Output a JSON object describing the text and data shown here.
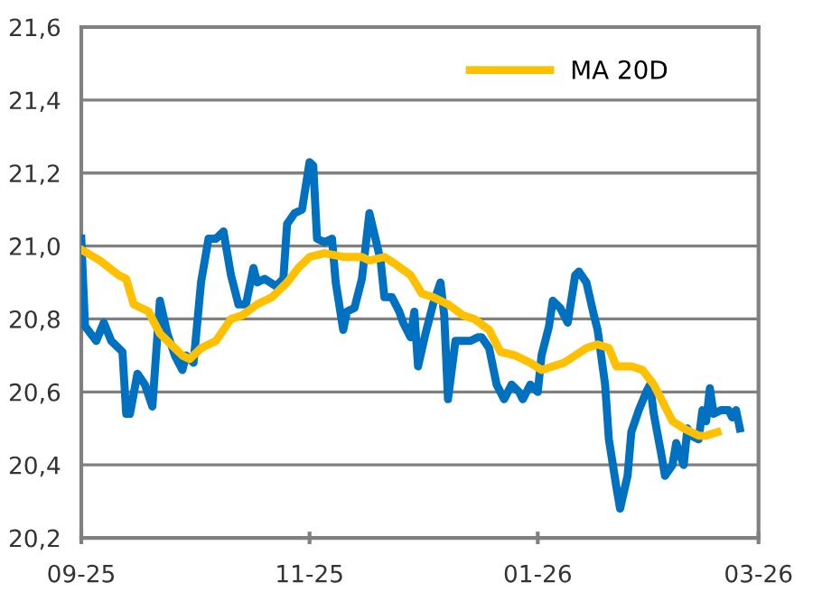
{
  "chart_data": {
    "type": "line",
    "series": [
      {
        "color": "#0070c0",
        "x": [
          "2025-09-01",
          "2025-09-02",
          "2025-09-05",
          "2025-09-07",
          "2025-09-09",
          "2025-09-12",
          "2025-09-13",
          "2025-09-14",
          "2025-09-16",
          "2025-09-18",
          "2025-09-20",
          "2025-09-22",
          "2025-09-24",
          "2025-09-26",
          "2025-09-28",
          "2025-09-29",
          "2025-10-01",
          "2025-10-03",
          "2025-10-05",
          "2025-10-07",
          "2025-10-09",
          "2025-10-11",
          "2025-10-13",
          "2025-10-15",
          "2025-10-17",
          "2025-10-18",
          "2025-10-20",
          "2025-10-23",
          "2025-10-25",
          "2025-10-26",
          "2025-10-28",
          "2025-10-30",
          "2025-11-01",
          "2025-11-02",
          "2025-11-03",
          "2025-11-05",
          "2025-11-07",
          "2025-11-08",
          "2025-11-10",
          "2025-11-11",
          "2025-11-13",
          "2025-11-15",
          "2025-11-17",
          "2025-11-20",
          "2025-11-21",
          "2025-11-23",
          "2025-11-25",
          "2025-11-26",
          "2025-11-28",
          "2025-11-29",
          "2025-11-30",
          "2025-12-02",
          "2025-12-04",
          "2025-12-06",
          "2025-12-07",
          "2025-12-08",
          "2025-12-10",
          "2025-12-12",
          "2025-12-14",
          "2025-12-16",
          "2025-12-17",
          "2025-12-19",
          "2025-12-21",
          "2025-12-22",
          "2025-12-23",
          "2025-12-25",
          "2025-12-27",
          "2025-12-28",
          "2025-12-30",
          "2026-01-01",
          "2026-01-02",
          "2026-01-04",
          "2026-01-05",
          "2026-01-07",
          "2026-01-09",
          "2026-01-11",
          "2026-01-12",
          "2026-01-14",
          "2026-01-16",
          "2026-01-17",
          "2026-01-19",
          "2026-01-20",
          "2026-01-22",
          "2026-01-23",
          "2026-01-25",
          "2026-01-26",
          "2026-01-28",
          "2026-01-30",
          "2026-01-31",
          "2026-02-01",
          "2026-02-03",
          "2026-02-04",
          "2026-02-06",
          "2026-02-07",
          "2026-02-09",
          "2026-02-10",
          "2026-02-11",
          "2026-02-13",
          "2026-02-14",
          "2026-02-15",
          "2026-02-16",
          "2026-02-17",
          "2026-02-19",
          "2026-02-21",
          "2026-02-22",
          "2026-02-23",
          "2026-02-24"
        ],
        "values": [
          21.02,
          20.78,
          20.74,
          20.79,
          20.74,
          20.71,
          20.54,
          20.54,
          20.65,
          20.62,
          20.56,
          20.85,
          20.76,
          20.7,
          20.66,
          20.7,
          20.68,
          20.9,
          21.02,
          21.02,
          21.04,
          20.92,
          20.84,
          20.84,
          20.94,
          20.9,
          20.91,
          20.89,
          20.91,
          21.06,
          21.09,
          21.1,
          21.23,
          21.22,
          21.02,
          21.01,
          21.02,
          20.9,
          20.77,
          20.82,
          20.83,
          20.91,
          21.09,
          20.96,
          20.86,
          20.86,
          20.82,
          20.79,
          20.75,
          20.82,
          20.67,
          20.76,
          20.84,
          20.9,
          20.81,
          20.58,
          20.74,
          20.74,
          20.74,
          20.75,
          20.75,
          20.72,
          20.62,
          20.6,
          20.58,
          20.62,
          20.6,
          20.58,
          20.62,
          20.6,
          20.7,
          20.78,
          20.85,
          20.83,
          20.79,
          20.92,
          20.93,
          20.9,
          20.81,
          20.77,
          20.62,
          20.47,
          20.34,
          20.28,
          20.37,
          20.49,
          20.55,
          20.6,
          20.62,
          20.54,
          20.43,
          20.37,
          20.4,
          20.46,
          20.4,
          20.5,
          20.48,
          20.47,
          20.55,
          20.52,
          20.61,
          20.54,
          20.55,
          20.55,
          20.53,
          20.55,
          20.5
        ]
      },
      {
        "name": "MA 20D",
        "color": "#ffc000",
        "x": [
          "2025-09-01",
          "2025-09-06",
          "2025-09-11",
          "2025-09-13",
          "2025-09-15",
          "2025-09-19",
          "2025-09-22",
          "2025-09-25",
          "2025-09-28",
          "2025-09-30",
          "2025-10-03",
          "2025-10-07",
          "2025-10-11",
          "2025-10-14",
          "2025-10-18",
          "2025-10-22",
          "2025-10-26",
          "2025-10-29",
          "2025-11-01",
          "2025-11-05",
          "2025-11-10",
          "2025-11-15",
          "2025-11-17",
          "2025-11-21",
          "2025-11-24",
          "2025-11-28",
          "2025-12-01",
          "2025-12-04",
          "2025-12-08",
          "2025-12-12",
          "2025-12-15",
          "2025-12-19",
          "2025-12-22",
          "2025-12-26",
          "2025-12-30",
          "2026-01-02",
          "2026-01-05",
          "2026-01-08",
          "2026-01-11",
          "2026-01-14",
          "2026-01-17",
          "2026-01-20",
          "2026-01-22",
          "2026-01-26",
          "2026-01-29",
          "2026-02-01",
          "2026-02-04",
          "2026-02-06",
          "2026-02-09",
          "2026-02-11",
          "2026-02-13",
          "2026-02-15",
          "2026-02-18"
        ],
        "values": [
          20.99,
          20.96,
          20.92,
          20.91,
          20.84,
          20.82,
          20.76,
          20.73,
          20.7,
          20.69,
          20.72,
          20.74,
          20.8,
          20.81,
          20.84,
          20.86,
          20.9,
          20.94,
          20.97,
          20.98,
          20.97,
          20.97,
          20.96,
          20.97,
          20.95,
          20.92,
          20.87,
          20.86,
          20.84,
          20.81,
          20.8,
          20.77,
          20.71,
          20.7,
          20.68,
          20.66,
          20.67,
          20.68,
          20.7,
          20.72,
          20.73,
          20.72,
          20.67,
          20.67,
          20.66,
          20.62,
          20.56,
          20.52,
          20.5,
          20.49,
          20.48,
          20.48,
          20.49
        ]
      }
    ],
    "xlim": [
      "2025-09-01",
      "2026-03-01"
    ],
    "xticks": [
      {
        "value": "2025-09-01",
        "label": "09-25"
      },
      {
        "value": "2025-11-01",
        "label": "11-25"
      },
      {
        "value": "2026-01-01",
        "label": "01-26"
      },
      {
        "value": "2026-03-01",
        "label": "03-26"
      }
    ],
    "ylim": [
      20.2,
      21.6
    ],
    "yticks": [
      {
        "value": 20.2,
        "label": "20,2"
      },
      {
        "value": 20.4,
        "label": "20,4"
      },
      {
        "value": 20.6,
        "label": "20,6"
      },
      {
        "value": 20.8,
        "label": "20,8"
      },
      {
        "value": 21.0,
        "label": "21,0"
      },
      {
        "value": 21.2,
        "label": "21,2"
      },
      {
        "value": 21.4,
        "label": "21,4"
      },
      {
        "value": 21.6,
        "label": "21,6"
      }
    ],
    "grid": "y",
    "legend": "top right",
    "line_style": "solid",
    "marker": "none"
  }
}
